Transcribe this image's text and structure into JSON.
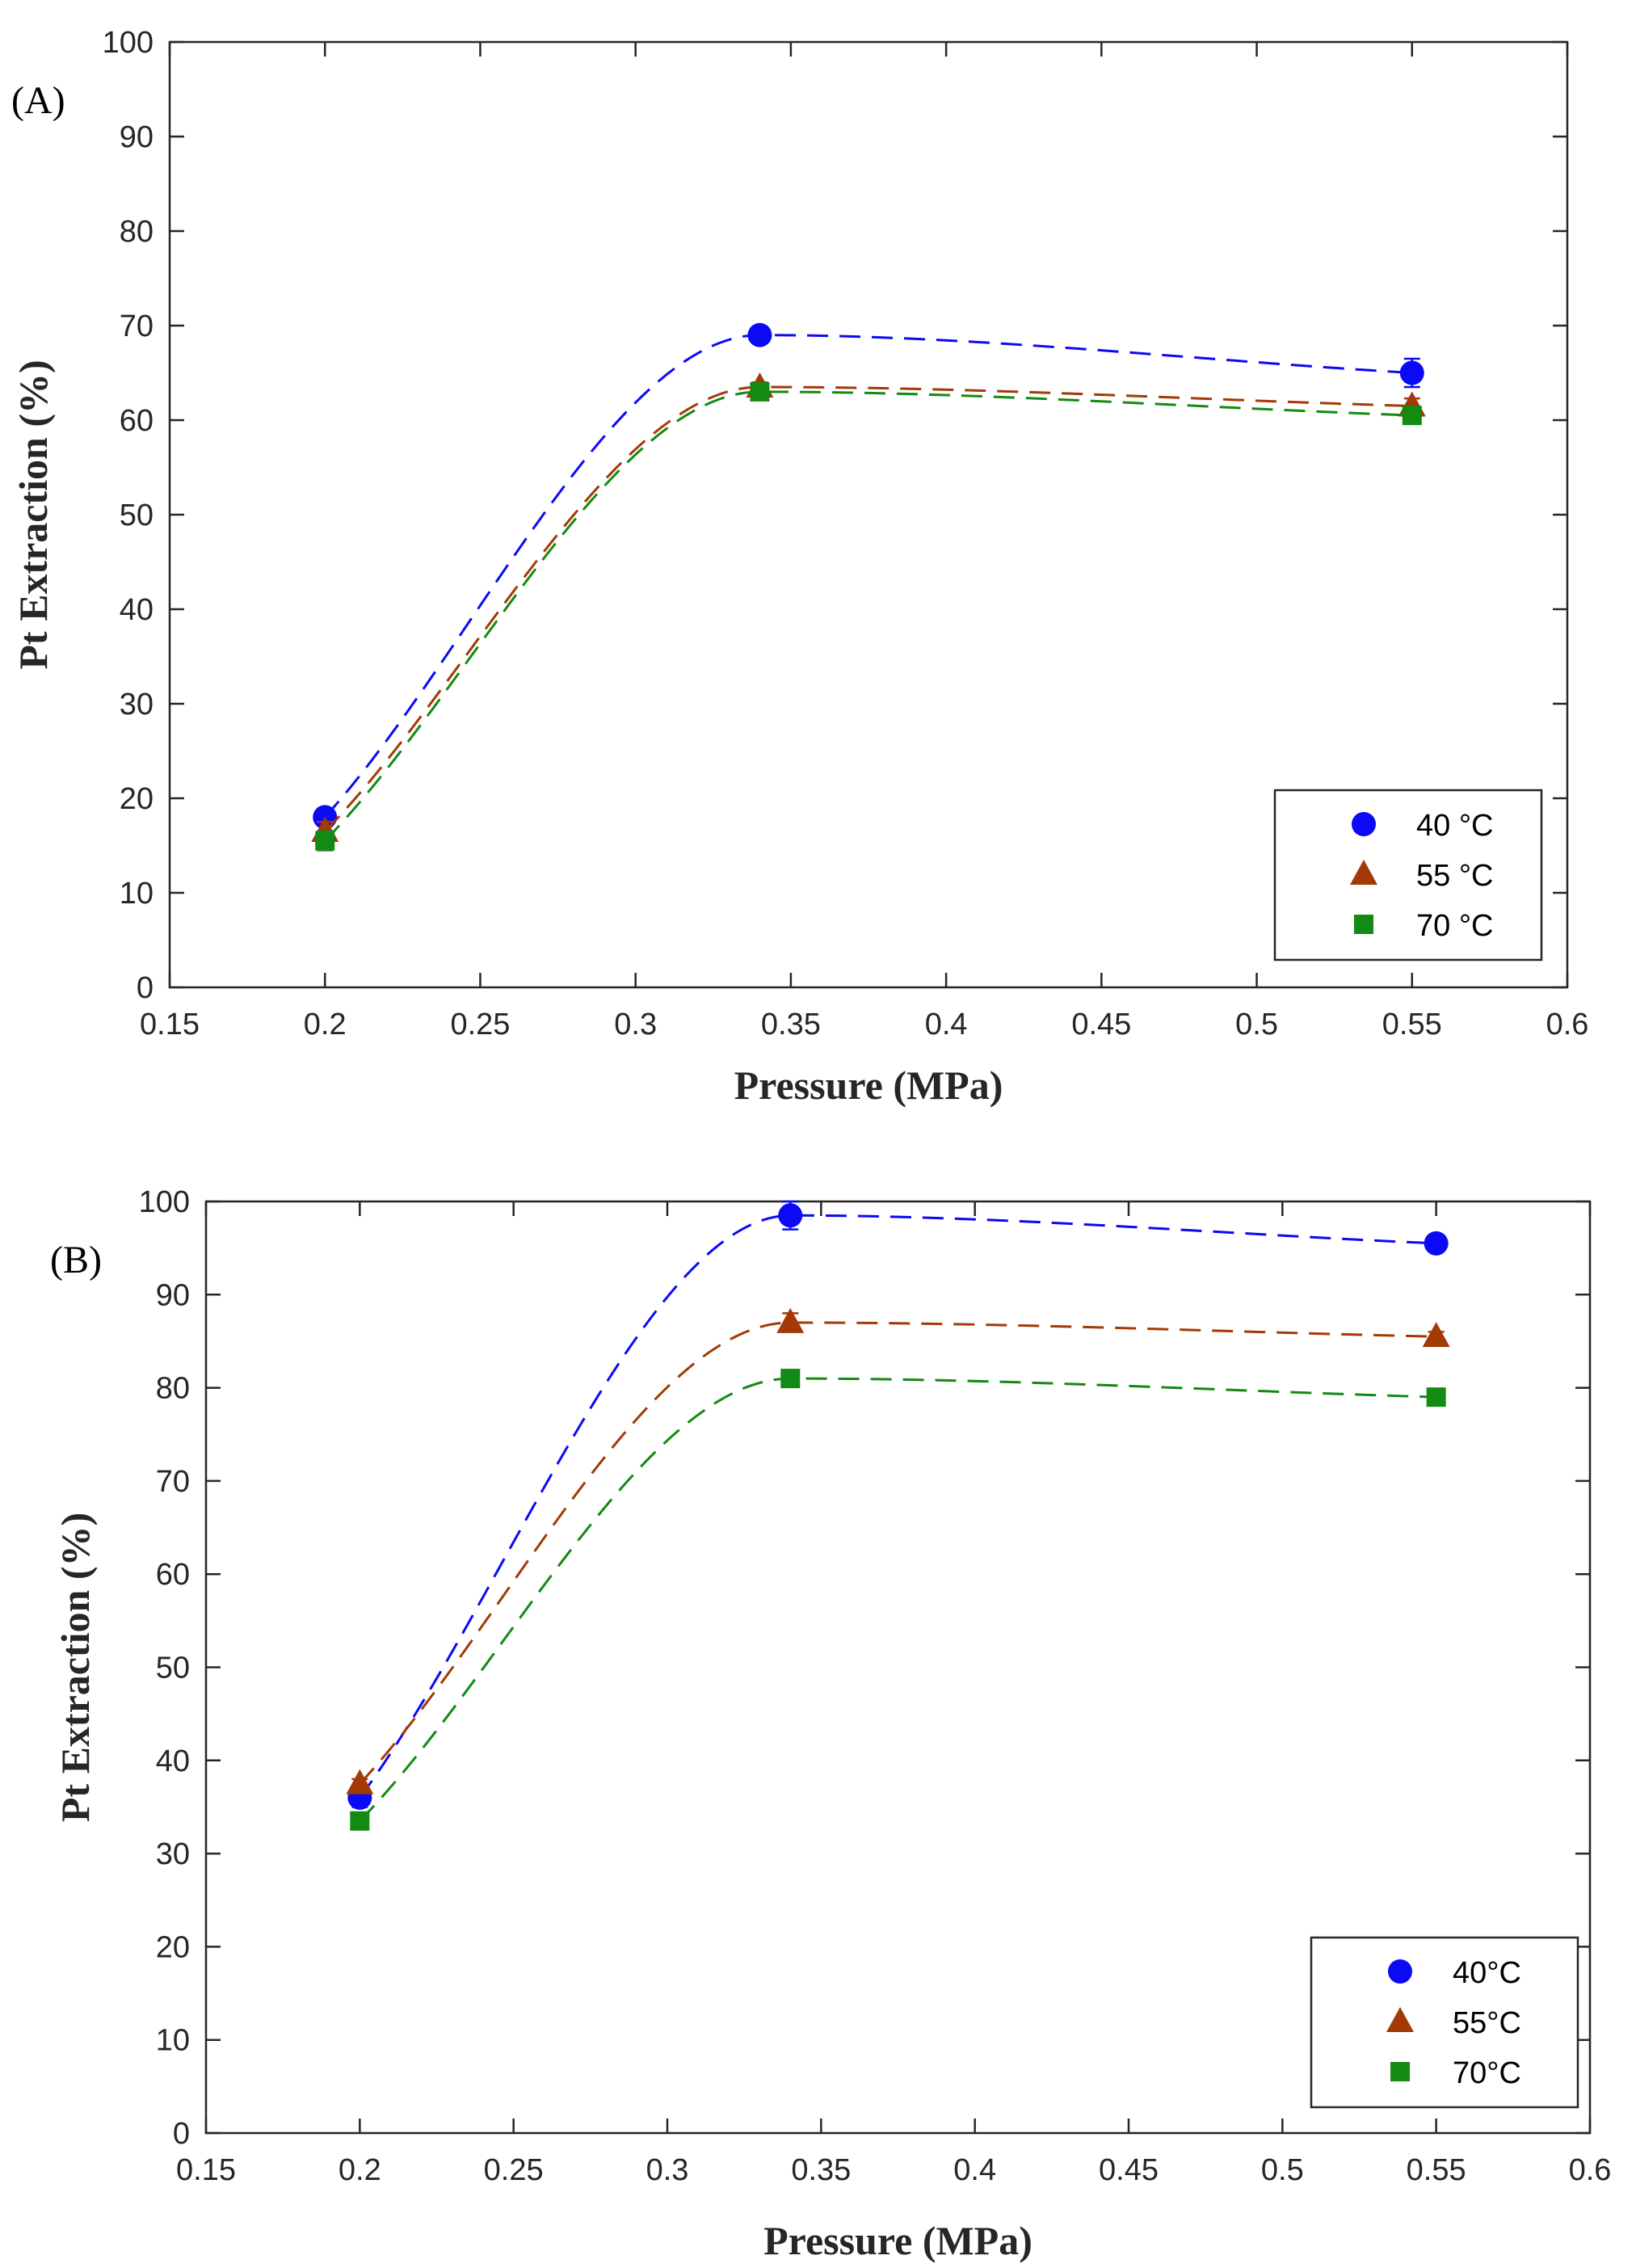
{
  "chart_data": [
    {
      "type": "line",
      "panel_label": "(A)",
      "xlabel": "Pressure (MPa)",
      "ylabel": "Pt Extraction (%)",
      "xlim": [
        0.15,
        0.6
      ],
      "ylim": [
        0,
        100
      ],
      "xticks": [
        0.15,
        0.2,
        0.25,
        0.3,
        0.35,
        0.4,
        0.45,
        0.5,
        0.55,
        0.6
      ],
      "xtick_labels": [
        "0.15",
        "0.2",
        "0.25",
        "0.3",
        "0.35",
        "0.4",
        "0.45",
        "0.5",
        "0.55",
        "0.6"
      ],
      "yticks": [
        0,
        10,
        20,
        30,
        40,
        50,
        60,
        70,
        80,
        90,
        100
      ],
      "ytick_labels": [
        "0",
        "10",
        "20",
        "30",
        "40",
        "50",
        "60",
        "70",
        "80",
        "90",
        "100"
      ],
      "grid": false,
      "legend_position": "bottom-right",
      "x": [
        0.2,
        0.34,
        0.55
      ],
      "series": [
        {
          "name": "40 °C",
          "marker": "circle",
          "color": "#0a0af5",
          "values": [
            18,
            69,
            65
          ],
          "errors": [
            0.5,
            0.5,
            1.5
          ]
        },
        {
          "name": "55 °C",
          "marker": "triangle",
          "color": "#a33a06",
          "values": [
            16.5,
            63.5,
            61.5
          ],
          "errors": [
            1,
            0.5,
            0.8
          ]
        },
        {
          "name": "70 °C",
          "marker": "square",
          "color": "#138a13",
          "values": [
            15.5,
            63,
            60.5
          ],
          "errors": [
            1,
            0.5,
            0.5
          ]
        }
      ]
    },
    {
      "type": "line",
      "panel_label": "(B)",
      "xlabel": "Pressure (MPa)",
      "ylabel": "Pt Extraction (%)",
      "xlim": [
        0.15,
        0.6
      ],
      "ylim": [
        0,
        100
      ],
      "xticks": [
        0.15,
        0.2,
        0.25,
        0.3,
        0.35,
        0.4,
        0.45,
        0.5,
        0.55,
        0.6
      ],
      "xtick_labels": [
        "0.15",
        "0.2",
        "0.25",
        "0.3",
        "0.35",
        "0.4",
        "0.45",
        "0.5",
        "0.55",
        "0.6"
      ],
      "yticks": [
        0,
        10,
        20,
        30,
        40,
        50,
        60,
        70,
        80,
        90,
        100
      ],
      "ytick_labels": [
        "0",
        "10",
        "20",
        "30",
        "40",
        "50",
        "60",
        "70",
        "80",
        "90",
        "100"
      ],
      "grid": false,
      "legend_position": "bottom-right",
      "x": [
        0.2,
        0.34,
        0.55
      ],
      "series": [
        {
          "name": "40°C",
          "marker": "circle",
          "color": "#0a0af5",
          "values": [
            36,
            98.5,
            95.5
          ],
          "errors": [
            1,
            1.5,
            0.5
          ]
        },
        {
          "name": "55°C",
          "marker": "triangle",
          "color": "#a33a06",
          "values": [
            37.5,
            87,
            85.5
          ],
          "errors": [
            0.5,
            1,
            0.5
          ]
        },
        {
          "name": "70°C",
          "marker": "square",
          "color": "#138a13",
          "values": [
            33.5,
            81,
            79
          ],
          "errors": [
            0.5,
            0.5,
            0.5
          ]
        }
      ]
    }
  ]
}
